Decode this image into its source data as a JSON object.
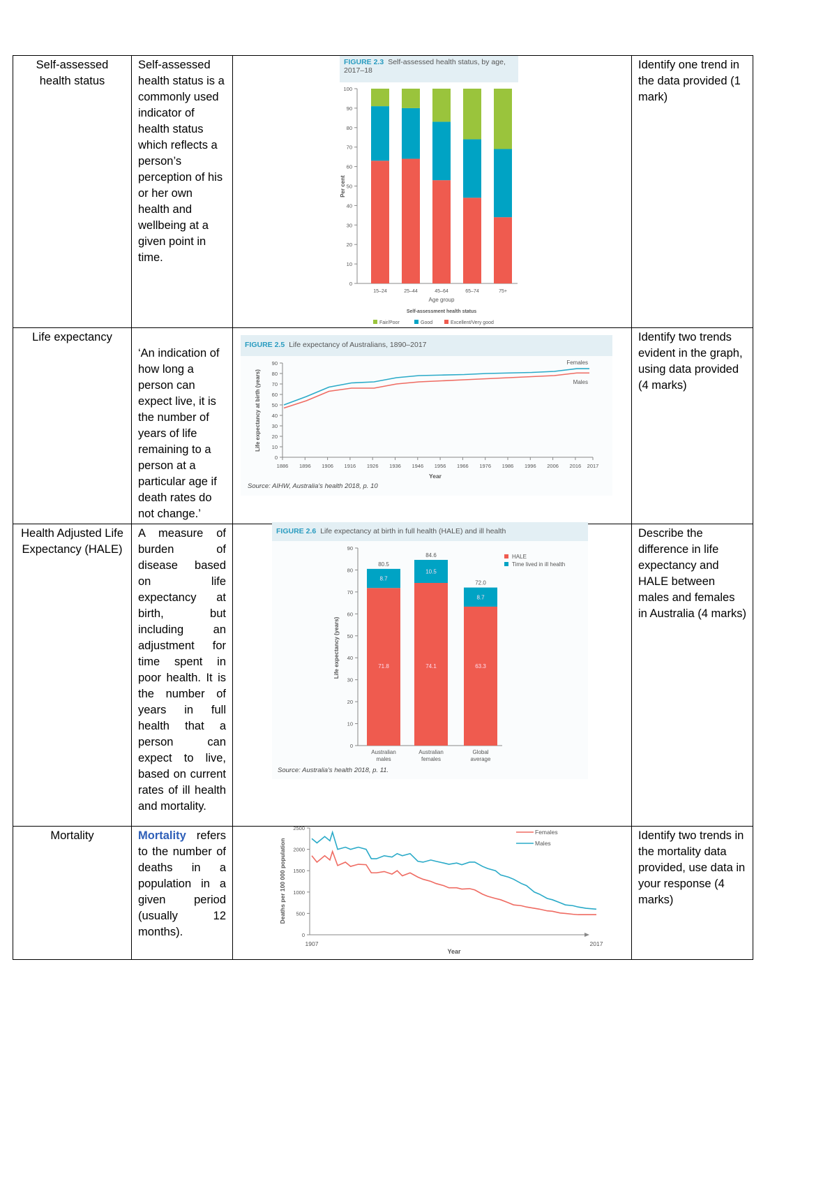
{
  "rows": [
    {
      "term": "Self-assessed health status",
      "definition": "Self-assessed health status is a commonly used indicator of health status which reflects a person’s perception of his or her own health and wellbeing at a given point in time.",
      "task": "Identify one trend in the data provided (1 mark)"
    },
    {
      "term": "Life expectancy",
      "definition": "‘An indication of how long a person can expect live, it is the number of years of life remaining to a person at a particular age if death rates do not change.’",
      "task": "Identify two trends evident in the graph, using data provided (4 marks)"
    },
    {
      "term": "Health Adjusted Life Expectancy (HALE)",
      "definition": "A measure of burden of disease based on life expectancy at birth, but including an adjustment for time spent in poor health. It is the number of years in full health that a person can expect to live, based on current rates of ill health and mortality.",
      "task": "Describe the difference in life expectancy and HALE between males and females in Australia (4 marks)"
    },
    {
      "term": "Mortality",
      "definition_highlight": "Mortality",
      "definition": " refers to the number of deaths in a population in a given period (usually 12 months).",
      "task": "Identify two trends in the mortality data provided, use data in your response (4 marks)"
    }
  ],
  "figures": {
    "fig23": {
      "label": "FIGURE 2.3",
      "title": "Self-assessed health status, by age, 2017–18"
    },
    "fig25": {
      "label": "FIGURE 2.5",
      "title": "Life expectancy of Australians, 1890–2017",
      "source": "Source: AIHW, Australia's health 2018, p. 10"
    },
    "fig26": {
      "label": "FIGURE 2.6",
      "title": "Life expectancy at birth in full health (HALE) and ill health",
      "source": "Source: Australia's health 2018, p. 11."
    }
  },
  "chart_data": [
    {
      "id": "fig23",
      "type": "bar",
      "stacked": true,
      "categories": [
        "15–24",
        "25–44",
        "45–64",
        "65–74",
        "75+"
      ],
      "xlabel": "Age group",
      "ylabel": "Per cent",
      "ylim": [
        0,
        100
      ],
      "yticks": [
        0,
        10,
        20,
        30,
        40,
        50,
        60,
        70,
        80,
        90,
        100
      ],
      "legend_title": "Self-assessment health status",
      "legend": "bottom",
      "series": [
        {
          "name": "Excellent/Very good",
          "color": "#ef5b4f",
          "values": [
            63,
            64,
            53,
            44,
            34
          ]
        },
        {
          "name": "Good",
          "color": "#00a3c4",
          "values": [
            28,
            26,
            30,
            30,
            35
          ]
        },
        {
          "name": "Fair/Poor",
          "color": "#9ac43c",
          "values": [
            9,
            10,
            17,
            26,
            31
          ]
        }
      ],
      "legend_order": [
        "Fair/Poor",
        "Good",
        "Excellent/Very good"
      ]
    },
    {
      "id": "fig25",
      "type": "line",
      "xlabel": "Year",
      "ylabel": "Life expectancy at birth (years)",
      "ylim": [
        0,
        90
      ],
      "yticks": [
        0,
        10,
        20,
        30,
        40,
        50,
        60,
        70,
        80,
        90
      ],
      "xticks": [
        "1886",
        "1896",
        "1906",
        "1916",
        "1926",
        "1936",
        "1946",
        "1956",
        "1966",
        "1976",
        "1986",
        "1996",
        "2006",
        "2016",
        "2017"
      ],
      "x": [
        1886,
        1896,
        1906,
        1916,
        1926,
        1936,
        1946,
        1956,
        1966,
        1976,
        1986,
        1996,
        2006,
        2016
      ],
      "series": [
        {
          "name": "Females",
          "color": "#2aaac8",
          "values": [
            50,
            58,
            67,
            71,
            72,
            76,
            78,
            78.5,
            79,
            80,
            80.5,
            81,
            82,
            84.6
          ]
        },
        {
          "name": "Males",
          "color": "#ef6b62",
          "values": [
            47,
            54,
            63,
            66,
            66,
            70,
            72,
            73,
            74,
            75,
            76,
            77,
            78,
            80.5
          ]
        }
      ]
    },
    {
      "id": "fig26",
      "type": "bar",
      "stacked": true,
      "categories": [
        "Australian males",
        "Australian females",
        "Global average"
      ],
      "ylabel": "Life expectancy (years)",
      "ylim": [
        0,
        90
      ],
      "yticks": [
        0,
        10,
        20,
        30,
        40,
        50,
        60,
        70,
        80,
        90
      ],
      "legend": "top-right",
      "totals": [
        "80.5",
        "84.6",
        "72.0"
      ],
      "series": [
        {
          "name": "HALE",
          "color": "#ef5b4f",
          "values": [
            71.8,
            74.1,
            63.3
          ],
          "labels": [
            "71.8",
            "74.1",
            "63.3"
          ]
        },
        {
          "name": "Time lived in ill health",
          "color": "#00a3c4",
          "values": [
            8.7,
            10.5,
            8.7
          ],
          "labels": [
            "8.7",
            "10.5",
            "8.7"
          ]
        }
      ]
    },
    {
      "id": "mort",
      "type": "line",
      "xlabel": "Year",
      "ylabel": "Deaths per 100 000 population",
      "ylim": [
        0,
        2500
      ],
      "yticks": [
        0,
        500,
        1000,
        1500,
        2000,
        2500
      ],
      "xticks": [
        "1907",
        "2017"
      ],
      "legend": "top-right",
      "x": [
        1907,
        1909,
        1912,
        1914,
        1915,
        1917,
        1920,
        1922,
        1925,
        1928,
        1930,
        1932,
        1935,
        1938,
        1940,
        1942,
        1945,
        1948,
        1950,
        1953,
        1955,
        1958,
        1960,
        1963,
        1965,
        1968,
        1970,
        1973,
        1975,
        1978,
        1980,
        1983,
        1985,
        1988,
        1990,
        1993,
        1995,
        1998,
        2000,
        2003,
        2005,
        2008,
        2010,
        2013,
        2017
      ],
      "series": [
        {
          "name": "Females",
          "color": "#ef6b62",
          "values": [
            1850,
            1700,
            1850,
            1750,
            1950,
            1620,
            1700,
            1600,
            1650,
            1640,
            1450,
            1450,
            1480,
            1420,
            1500,
            1380,
            1450,
            1350,
            1300,
            1250,
            1200,
            1150,
            1100,
            1100,
            1070,
            1080,
            1050,
            950,
            900,
            850,
            820,
            750,
            700,
            680,
            650,
            620,
            600,
            560,
            550,
            510,
            500,
            480,
            470,
            470,
            470
          ]
        },
        {
          "name": "Males",
          "color": "#2aaac8",
          "values": [
            2250,
            2150,
            2300,
            2200,
            2400,
            2000,
            2050,
            2000,
            2050,
            2000,
            1780,
            1780,
            1850,
            1820,
            1900,
            1850,
            1900,
            1720,
            1700,
            1750,
            1720,
            1680,
            1650,
            1680,
            1640,
            1700,
            1700,
            1600,
            1550,
            1500,
            1400,
            1350,
            1300,
            1200,
            1150,
            1000,
            950,
            850,
            820,
            750,
            700,
            680,
            650,
            620,
            600
          ]
        }
      ]
    }
  ]
}
